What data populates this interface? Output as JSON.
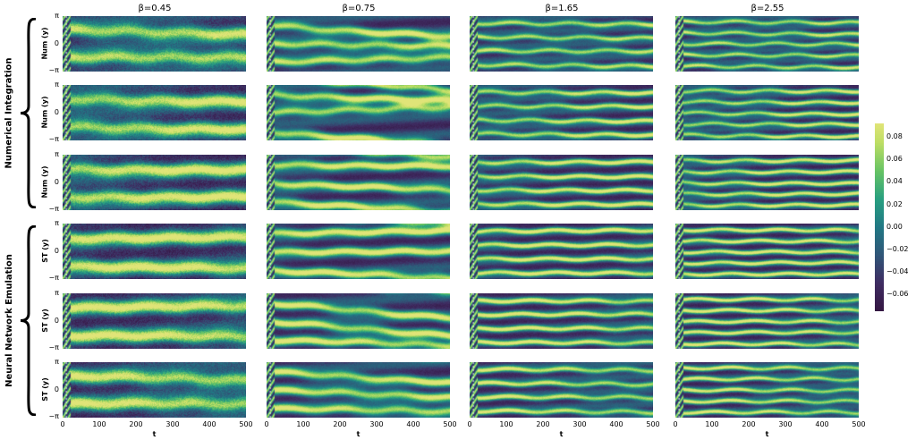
{
  "figure": {
    "group_labels": [
      "Numerical Integration",
      "Neural Network Emulation"
    ],
    "row_ylabels": [
      "Num (y)",
      "Num (y)",
      "Num (y)",
      "ST (y)",
      "ST (y)",
      "ST (y)"
    ],
    "xlabel": "t"
  },
  "chart_data": {
    "type": "heatmap",
    "columns": [
      {
        "title": "β=0.45",
        "beta": 0.45
      },
      {
        "title": "β=0.75",
        "beta": 0.75
      },
      {
        "title": "β=1.65",
        "beta": 1.65
      },
      {
        "title": "β=2.55",
        "beta": 2.55
      }
    ],
    "rows": 6,
    "x_ticks": [
      0,
      100,
      200,
      300,
      400,
      500
    ],
    "xlim": [
      0,
      500
    ],
    "y_tick_labels": [
      "π",
      "0",
      "−π"
    ],
    "ylim": [
      -3.14159,
      3.14159
    ],
    "marker_t": 10,
    "colorbar": {
      "ticks": [
        0.08,
        0.06,
        0.04,
        0.02,
        0.0,
        -0.02,
        -0.04,
        -0.06
      ],
      "tick_labels": [
        "0.08",
        "0.06",
        "0.04",
        "0.02",
        "0.00",
        "−0.02",
        "−0.04",
        "−0.06"
      ],
      "range": [
        -0.075,
        0.092
      ],
      "colormap": "viridis-like (dark purple → teal → green → yellow)"
    },
    "colors": {
      "low": "#3b1a4a",
      "mid": "#1f7f80",
      "high": "#dbe36b"
    }
  }
}
